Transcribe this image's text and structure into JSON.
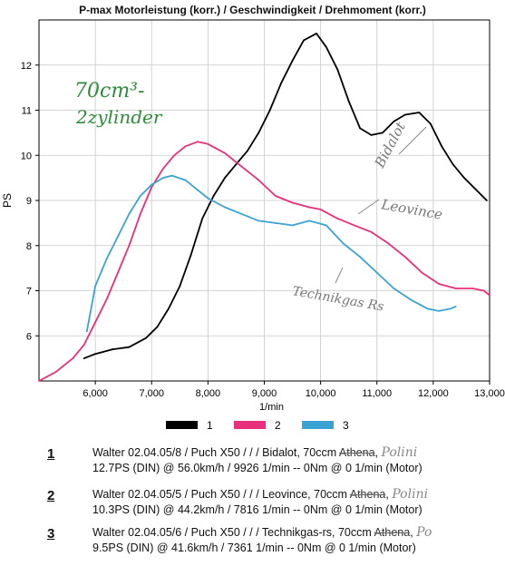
{
  "chart_data": {
    "type": "line",
    "title": "P-max Motorleistung (korr.) / Geschwindigkeit / Drehmoment (korr.)",
    "xlabel": "1/min",
    "ylabel": "PS",
    "xlim": [
      5000,
      13000
    ],
    "ylim": [
      5.0,
      13.0
    ],
    "x_ticks": [
      "6,000",
      "7,000",
      "8,000",
      "9,000",
      "10,000",
      "11,000",
      "12,000",
      "13,000"
    ],
    "y_ticks": [
      "6",
      "7",
      "8",
      "9",
      "10",
      "11",
      "12"
    ],
    "grid": true,
    "legend_position": "bottom",
    "series": [
      {
        "name": "1",
        "color": "#000000",
        "points": [
          [
            5800,
            5.5
          ],
          [
            6000,
            5.6
          ],
          [
            6300,
            5.7
          ],
          [
            6600,
            5.75
          ],
          [
            6900,
            5.95
          ],
          [
            7100,
            6.2
          ],
          [
            7300,
            6.6
          ],
          [
            7500,
            7.1
          ],
          [
            7700,
            7.8
          ],
          [
            7900,
            8.6
          ],
          [
            8100,
            9.1
          ],
          [
            8300,
            9.5
          ],
          [
            8500,
            9.8
          ],
          [
            8700,
            10.1
          ],
          [
            8900,
            10.5
          ],
          [
            9100,
            11.0
          ],
          [
            9300,
            11.6
          ],
          [
            9500,
            12.1
          ],
          [
            9700,
            12.55
          ],
          [
            9926,
            12.7
          ],
          [
            10100,
            12.4
          ],
          [
            10300,
            11.9
          ],
          [
            10500,
            11.2
          ],
          [
            10700,
            10.6
          ],
          [
            10900,
            10.45
          ],
          [
            11100,
            10.5
          ],
          [
            11300,
            10.75
          ],
          [
            11500,
            10.9
          ],
          [
            11750,
            10.95
          ],
          [
            11950,
            10.7
          ],
          [
            12150,
            10.2
          ],
          [
            12350,
            9.8
          ],
          [
            12550,
            9.5
          ],
          [
            12750,
            9.25
          ],
          [
            12950,
            9.0
          ]
        ]
      },
      {
        "name": "2",
        "color": "#e8307a",
        "points": [
          [
            5000,
            5.0
          ],
          [
            5300,
            5.2
          ],
          [
            5600,
            5.5
          ],
          [
            5800,
            5.8
          ],
          [
            6000,
            6.3
          ],
          [
            6200,
            6.8
          ],
          [
            6400,
            7.4
          ],
          [
            6600,
            8.0
          ],
          [
            6800,
            8.7
          ],
          [
            7000,
            9.3
          ],
          [
            7200,
            9.7
          ],
          [
            7400,
            10.0
          ],
          [
            7600,
            10.2
          ],
          [
            7816,
            10.3
          ],
          [
            8000,
            10.25
          ],
          [
            8300,
            10.05
          ],
          [
            8600,
            9.75
          ],
          [
            8900,
            9.45
          ],
          [
            9200,
            9.1
          ],
          [
            9500,
            8.95
          ],
          [
            9800,
            8.85
          ],
          [
            10000,
            8.8
          ],
          [
            10300,
            8.6
          ],
          [
            10600,
            8.45
          ],
          [
            10900,
            8.3
          ],
          [
            11200,
            8.05
          ],
          [
            11500,
            7.75
          ],
          [
            11800,
            7.4
          ],
          [
            12100,
            7.15
          ],
          [
            12400,
            7.05
          ],
          [
            12700,
            7.05
          ],
          [
            12900,
            7.0
          ],
          [
            13000,
            6.9
          ]
        ]
      },
      {
        "name": "3",
        "color": "#3ba3d4",
        "points": [
          [
            5850,
            6.1
          ],
          [
            6000,
            7.1
          ],
          [
            6200,
            7.7
          ],
          [
            6400,
            8.2
          ],
          [
            6600,
            8.7
          ],
          [
            6800,
            9.1
          ],
          [
            7000,
            9.35
          ],
          [
            7200,
            9.5
          ],
          [
            7361,
            9.55
          ],
          [
            7600,
            9.45
          ],
          [
            7800,
            9.25
          ],
          [
            8000,
            9.05
          ],
          [
            8300,
            8.85
          ],
          [
            8600,
            8.7
          ],
          [
            8900,
            8.55
          ],
          [
            9200,
            8.5
          ],
          [
            9500,
            8.45
          ],
          [
            9800,
            8.55
          ],
          [
            10100,
            8.45
          ],
          [
            10400,
            8.05
          ],
          [
            10700,
            7.75
          ],
          [
            11000,
            7.4
          ],
          [
            11300,
            7.05
          ],
          [
            11600,
            6.8
          ],
          [
            11900,
            6.6
          ],
          [
            12100,
            6.55
          ],
          [
            12300,
            6.6
          ],
          [
            12400,
            6.65
          ]
        ]
      }
    ],
    "annotations": [
      "70cm³-2zylinder",
      "Bidalot",
      "Leovince",
      "Technikgas Rs"
    ]
  },
  "entries": [
    {
      "num": "1",
      "line1_pre": "Walter 02.04.05/8 / Puch X50 /  /  / Bidalot, 70ccm ",
      "line1_strike": "Athena",
      "line1_sep": ",",
      "handwritten": "Polini",
      "line2": "12.7PS (DIN) @ 56.0km/h / 9926 1/min -- 0Nm @ 0 1/min (Motor)"
    },
    {
      "num": "2",
      "line1_pre": "Walter 02.04.05/5 / Puch X50 /  /  / Leovince, 70ccm ",
      "line1_strike": "Athena",
      "line1_sep": ",",
      "handwritten": "Polini",
      "line2": "10.3PS (DIN) @ 44.2km/h / 7816 1/min -- 0Nm @ 0 1/min (Motor)"
    },
    {
      "num": "3",
      "line1_pre": "Walter 02.04.05/6 / Puch X50 /  /  / Technikgas-rs, 70ccm ",
      "line1_strike": "Athena",
      "line1_sep": ",",
      "handwritten": "Po",
      "line2": "9.5PS (DIN) @ 41.6km/h / 7361 1/min -- 0Nm @ 0 1/min (Motor)"
    }
  ]
}
